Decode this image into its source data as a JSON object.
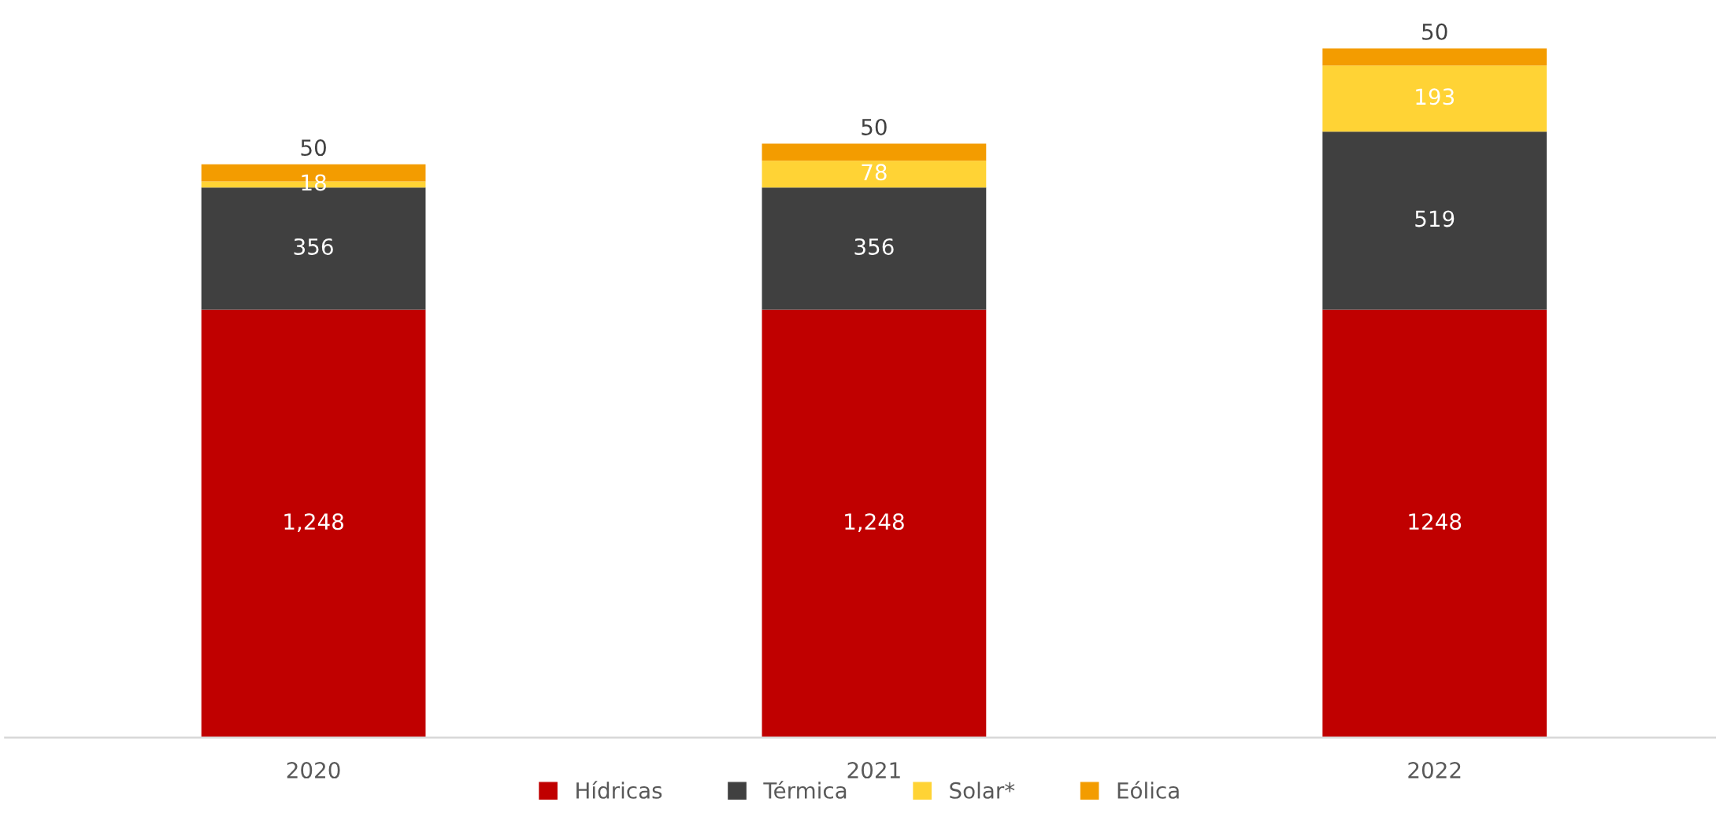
{
  "chart_data": {
    "type": "bar",
    "stacked": true,
    "categories": [
      "2020",
      "2021",
      "2022"
    ],
    "series": [
      {
        "name": "Hídricas",
        "color": "#c00000",
        "values": [
          1248,
          1248,
          1248
        ],
        "value_labels": [
          "1,248",
          "1,248",
          "1248"
        ]
      },
      {
        "name": "Térmica",
        "color": "#404040",
        "values": [
          356,
          356,
          519
        ],
        "value_labels": [
          "356",
          "356",
          "519"
        ]
      },
      {
        "name": "Solar*",
        "color": "#ffd335",
        "values": [
          18,
          78,
          193
        ],
        "value_labels": [
          "18",
          "78",
          "193"
        ]
      },
      {
        "name": "Eólica",
        "color": "#f39c00",
        "values": [
          50,
          50,
          50
        ],
        "value_labels": [
          "50",
          "50",
          "50"
        ]
      }
    ],
    "tick_labels": "x",
    "grid": false,
    "legend": "bottom"
  }
}
